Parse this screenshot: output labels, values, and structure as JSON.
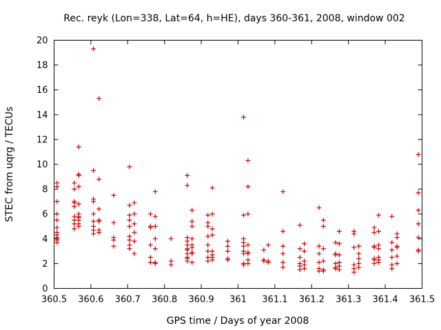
{
  "chart_data": {
    "type": "scatter",
    "title": "Rec. reyk (Lon=338, Lat=64, h=HE), days 360-361, 2008, window 002",
    "xlabel": "GPS time / Days of year 2008",
    "ylabel": "STEC from uqrg / TECUs",
    "xlim": [
      360.5,
      361.5
    ],
    "ylim": [
      0,
      20
    ],
    "xticks": [
      360.5,
      360.6,
      360.7,
      360.8,
      360.9,
      361.0,
      361.1,
      361.2,
      361.3,
      361.4,
      361.5
    ],
    "xtick_labels": [
      "360.5",
      "360.6",
      "360.7",
      "360.8",
      "360.9",
      "361",
      "361.1",
      "361.2",
      "361.3",
      "361.4",
      "361.5"
    ],
    "yticks": [
      0,
      2,
      4,
      6,
      8,
      10,
      12,
      14,
      16,
      18,
      20
    ],
    "ytick_labels": [
      "0",
      "2",
      "4",
      "6",
      "8",
      "10",
      "12",
      "14",
      "16",
      "18",
      "20"
    ],
    "grid": false,
    "legend": "none",
    "marker": "plus",
    "color": "#cc0000",
    "series": [
      {
        "x": [
          360.508,
          360.508,
          360.508,
          360.508,
          360.508,
          360.508,
          360.508,
          360.508,
          360.508,
          360.508,
          360.508,
          360.508,
          360.555,
          360.555,
          360.555,
          360.555,
          360.555,
          360.555,
          360.555,
          360.555,
          360.555,
          360.567,
          360.567,
          360.567,
          360.567,
          360.567,
          360.567,
          360.567,
          360.567,
          360.567,
          360.567,
          360.567,
          360.607,
          360.607,
          360.607,
          360.607,
          360.607,
          360.607,
          360.607,
          360.607,
          360.607,
          360.622,
          360.622,
          360.622,
          360.622,
          360.622,
          360.622,
          360.622,
          360.662,
          360.662,
          360.662,
          360.662,
          360.662,
          360.705,
          360.705,
          360.705,
          360.705,
          360.705,
          360.705,
          360.705,
          360.705,
          360.705,
          360.718,
          360.718,
          360.718,
          360.718,
          360.718,
          360.718,
          360.762,
          360.762,
          360.762,
          360.762,
          360.762,
          360.762,
          360.775,
          360.775,
          360.775,
          360.775,
          360.775,
          360.775,
          360.775,
          360.818,
          360.818,
          360.818,
          360.862,
          360.862,
          360.862,
          360.862,
          360.862,
          360.862,
          360.862,
          360.862,
          360.862,
          360.862,
          360.862,
          360.875,
          360.875,
          360.875,
          360.875,
          360.875,
          360.875,
          360.875,
          360.875,
          360.875,
          360.918,
          360.918,
          360.918,
          360.918,
          360.918,
          360.918,
          360.918,
          360.918,
          360.93,
          360.93,
          360.93,
          360.93,
          360.93,
          360.93,
          360.93,
          360.93,
          360.972,
          360.972,
          360.972,
          360.972,
          360.972,
          361.015,
          361.015,
          361.015,
          361.015,
          361.015,
          361.015,
          361.015,
          361.015,
          361.015,
          361.027,
          361.027,
          361.027,
          361.027,
          361.027,
          361.027,
          361.027,
          361.027,
          361.07,
          361.07,
          361.07,
          361.082,
          361.082,
          361.082,
          361.122,
          361.122,
          361.122,
          361.122,
          361.122,
          361.122,
          361.168,
          361.168,
          361.168,
          361.168,
          361.168,
          361.168,
          361.18,
          361.18,
          361.18,
          361.18,
          361.18,
          361.22,
          361.22,
          361.22,
          361.22,
          361.22,
          361.22,
          361.232,
          361.232,
          361.232,
          361.232,
          361.232,
          361.232,
          361.265,
          361.265,
          361.265,
          361.265,
          361.265,
          361.265,
          361.275,
          361.275,
          361.275,
          361.275,
          361.275,
          361.275,
          361.315,
          361.315,
          361.315,
          361.315,
          361.315,
          361.315,
          361.328,
          361.328,
          361.328,
          361.328,
          361.328,
          361.37,
          361.37,
          361.37,
          361.37,
          361.37,
          361.37,
          361.37,
          361.382,
          361.382,
          361.382,
          361.382,
          361.382,
          361.382,
          361.382,
          361.418,
          361.418,
          361.418,
          361.418,
          361.418,
          361.418,
          361.432,
          361.432,
          361.432,
          361.432,
          361.432,
          361.432,
          361.49,
          361.49,
          361.49,
          361.49,
          361.49,
          361.49,
          361.49
        ],
        "y": [
          8.5,
          8.2,
          7.0,
          6.0,
          5.5,
          4.9,
          4.5,
          4.3,
          4.1,
          4.0,
          3.9,
          3.7,
          8.5,
          8.0,
          7.0,
          6.9,
          6.6,
          5.8,
          5.5,
          5.2,
          4.8,
          11.4,
          9.2,
          9.1,
          8.2,
          6.8,
          6.0,
          5.8,
          5.7,
          5.5,
          5.2,
          5.0,
          19.3,
          9.5,
          7.2,
          7.0,
          6.0,
          5.4,
          5.0,
          4.7,
          4.4,
          15.3,
          8.8,
          6.4,
          5.5,
          5.4,
          4.7,
          4.5,
          7.5,
          5.3,
          4.1,
          3.9,
          3.4,
          9.8,
          6.7,
          5.9,
          5.5,
          5.0,
          4.2,
          3.9,
          3.5,
          3.2,
          6.9,
          6.0,
          5.2,
          4.5,
          3.8,
          2.8,
          6.0,
          5.0,
          4.9,
          3.5,
          2.5,
          2.1,
          7.8,
          5.8,
          5.0,
          4.0,
          3.2,
          2.1,
          2.0,
          4.0,
          2.2,
          1.9,
          9.1,
          8.3,
          4.1,
          3.8,
          3.5,
          3.2,
          3.1,
          2.8,
          2.5,
          2.4,
          2.2,
          6.3,
          5.4,
          5.0,
          4.0,
          3.5,
          3.3,
          2.9,
          2.8,
          2.1,
          5.9,
          5.3,
          5.0,
          4.2,
          3.5,
          3.0,
          2.5,
          2.2,
          8.1,
          6.0,
          4.8,
          4.3,
          3.0,
          2.7,
          2.5,
          2.3,
          3.8,
          3.4,
          3.0,
          2.4,
          2.3,
          13.8,
          5.9,
          4.0,
          3.7,
          3.4,
          3.0,
          2.8,
          2.0,
          1.9,
          10.3,
          8.2,
          6.0,
          3.5,
          2.9,
          2.8,
          2.3,
          2.0,
          3.1,
          2.3,
          2.2,
          3.5,
          2.2,
          2.1,
          7.8,
          4.6,
          3.4,
          2.8,
          2.1,
          1.7,
          5.1,
          3.2,
          2.5,
          2.0,
          1.8,
          1.5,
          3.6,
          3.0,
          2.2,
          1.9,
          1.6,
          6.5,
          3.4,
          2.8,
          2.1,
          1.6,
          1.4,
          5.5,
          5.0,
          3.2,
          2.2,
          1.5,
          1.4,
          3.7,
          2.8,
          2.7,
          2.0,
          1.7,
          1.6,
          4.6,
          3.6,
          2.7,
          2.1,
          1.8,
          1.5,
          4.6,
          4.4,
          3.3,
          1.9,
          1.6,
          1.3,
          3.4,
          2.8,
          2.4,
          2.0,
          1.7,
          4.9,
          4.5,
          3.4,
          3.3,
          2.4,
          2.3,
          2.0,
          5.9,
          4.6,
          3.5,
          3.2,
          2.5,
          2.3,
          2.1,
          5.8,
          3.7,
          3.1,
          2.5,
          1.9,
          1.6,
          4.4,
          4.1,
          3.4,
          3.3,
          2.6,
          2.0,
          10.8,
          7.7,
          6.3,
          5.2,
          4.1,
          3.1,
          3.0
        ]
      }
    ]
  }
}
